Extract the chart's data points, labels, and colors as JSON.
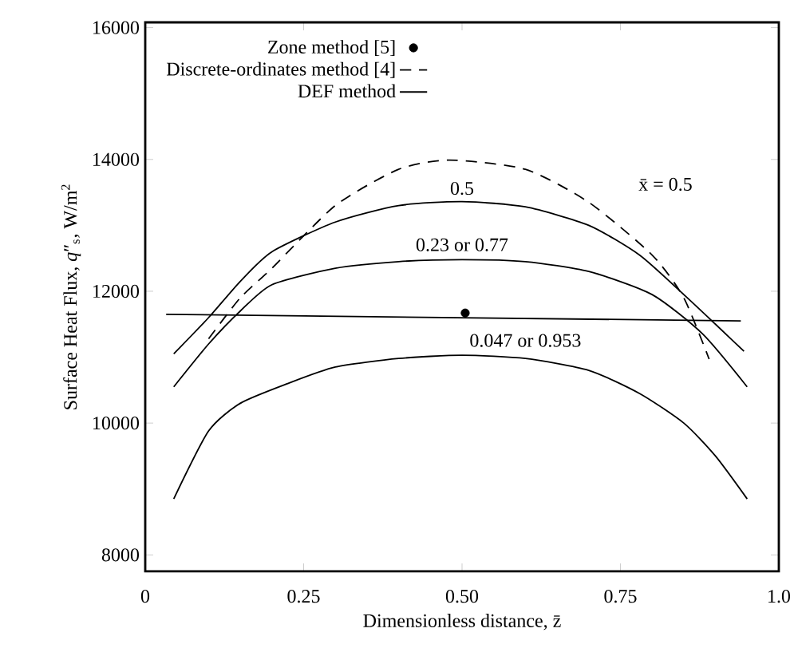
{
  "chart_data": {
    "type": "line",
    "xlabel": "Dimensionless distance, z̄",
    "ylabel": "Surface Heat Flux, *q*″$_{s}$, W/m$^{2}$",
    "xlim": [
      0,
      1.0
    ],
    "ylim": [
      7750,
      16080
    ],
    "xticks": [
      0,
      0.25,
      {
        "value": 0.5,
        "label": "0.50"
      },
      0.75,
      {
        "value": 1.0,
        "label": "1.0"
      }
    ],
    "yticks": [
      8000,
      10000,
      12000,
      14000,
      16000
    ],
    "grid": false,
    "legend": "top left",
    "series": [
      {
        "name": "Zone method [5]",
        "type": "scatter",
        "marker": "circle",
        "color": "#000000",
        "x": [
          0.505
        ],
        "values": [
          11670
        ]
      },
      {
        "name": "Discrete-ordinates method [4]",
        "line_style": "dashed",
        "color": "#000000",
        "x": [
          0.1,
          0.15,
          0.2,
          0.3,
          0.4,
          0.48,
          0.6,
          0.7,
          0.8,
          0.85,
          0.89
        ],
        "values": [
          11280,
          11900,
          12350,
          13300,
          13850,
          13990,
          13850,
          13350,
          12550,
          11900,
          10970
        ]
      },
      {
        "name": "DEF method",
        "line_style": "solid",
        "color": "#000000",
        "x": [
          0.045,
          0.1,
          0.15,
          0.2,
          0.3,
          0.4,
          0.5,
          0.6,
          0.7,
          0.78,
          0.85,
          0.9,
          0.945
        ],
        "values": [
          11050,
          11600,
          12150,
          12600,
          13050,
          13300,
          13360,
          13280,
          13000,
          12550,
          11950,
          11500,
          11090
        ]
      },
      {
        "line_style": "solid",
        "color": "#000000",
        "x": [
          0.045,
          0.1,
          0.15,
          0.2,
          0.3,
          0.4,
          0.5,
          0.6,
          0.7,
          0.8,
          0.88,
          0.95
        ],
        "values": [
          10550,
          11200,
          11700,
          12100,
          12350,
          12450,
          12480,
          12450,
          12300,
          11950,
          11350,
          10550
        ]
      },
      {
        "line_style": "solid",
        "color": "#000000",
        "x": [
          0.045,
          0.1,
          0.15,
          0.225,
          0.3,
          0.4,
          0.5,
          0.6,
          0.7,
          0.78,
          0.85,
          0.9,
          0.95
        ],
        "values": [
          8850,
          9880,
          10300,
          10600,
          10850,
          10980,
          11030,
          10980,
          10800,
          10450,
          10000,
          9500,
          8850
        ]
      },
      {
        "line_style": "solid",
        "color": "#000000",
        "x": [
          0.033,
          0.94
        ],
        "values": [
          11650,
          11550
        ]
      }
    ],
    "annotations": [
      {
        "text": "0.5",
        "x": 0.5,
        "y": 13360
      },
      {
        "text": "0.23 or 0.77",
        "x": 0.5,
        "y": 12480
      },
      {
        "text": "0.047 or 0.953",
        "x": 0.6,
        "y": 10980
      },
      {
        "text": "x̄ = 0.5",
        "x": 0.7,
        "y": 13350
      }
    ]
  }
}
